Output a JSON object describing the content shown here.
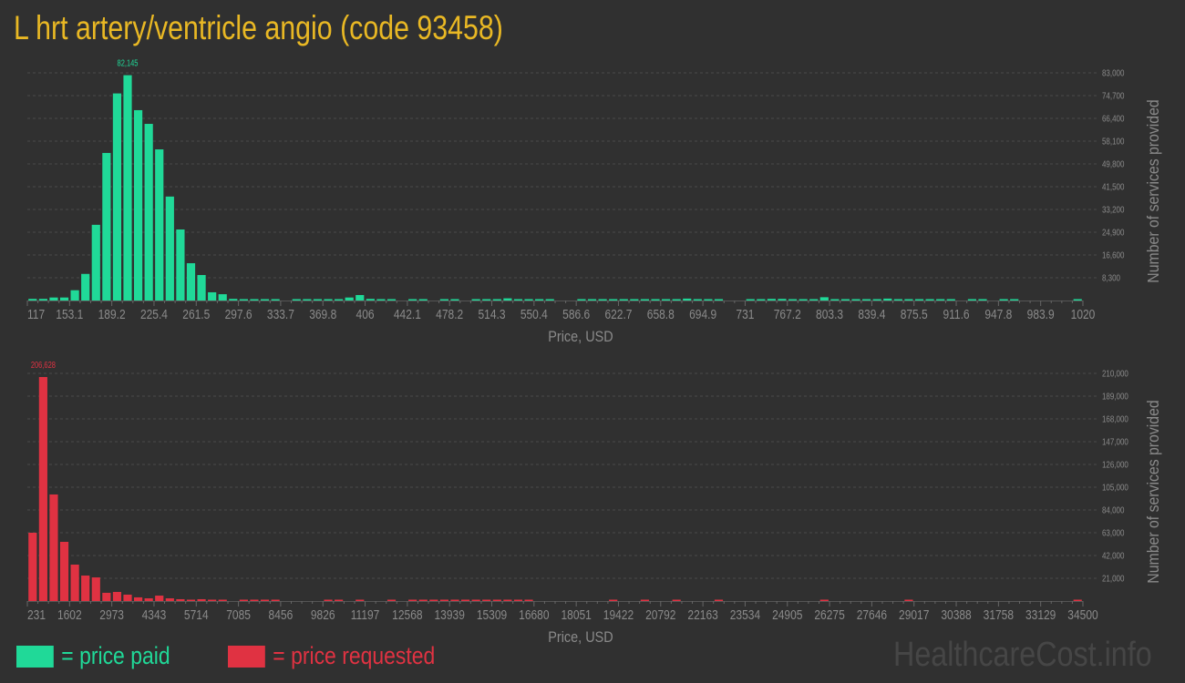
{
  "title": "L hrt artery/ventricle angio (code 93458)",
  "colors": {
    "background": "#303030",
    "title": "#e9b824",
    "paid": "#20d998",
    "requested": "#e03242",
    "axis_text": "#8a8a8a"
  },
  "legend": {
    "paid_label": "= price paid",
    "requested_label": "= price requested"
  },
  "watermark": "HealthcareCost.info",
  "chart_data": [
    {
      "type": "bar",
      "series_key": "paid",
      "xlabel": "Price, USD",
      "ylabel": "Number of services provided",
      "xlim": [
        117,
        1020
      ],
      "ylim": [
        0,
        83000
      ],
      "grid": true,
      "max_label": "82,145",
      "x_tick_labels": [
        "117",
        "153.1",
        "189.2",
        "225.4",
        "261.5",
        "297.6",
        "333.7",
        "369.8",
        "406",
        "442.1",
        "478.2",
        "514.3",
        "550.4",
        "586.6",
        "622.7",
        "658.8",
        "694.9",
        "731",
        "767.2",
        "803.3",
        "839.4",
        "875.5",
        "911.6",
        "947.8",
        "983.9",
        "1020"
      ],
      "y_ticks": [
        8300,
        16600,
        24900,
        33200,
        41500,
        49800,
        58100,
        66400,
        74700,
        83000
      ],
      "y_tick_labels": [
        "8,300",
        "16,600",
        "24,900",
        "33,200",
        "41,500",
        "49,800",
        "58,100",
        "66,400",
        "74,700",
        "83,000"
      ],
      "values": [
        600,
        600,
        1100,
        1100,
        3750,
        9700,
        27600,
        53800,
        75500,
        82145,
        69400,
        64400,
        55100,
        37900,
        25900,
        13600,
        9300,
        3000,
        2300,
        600,
        300,
        300,
        300,
        300,
        0,
        300,
        300,
        300,
        500,
        500,
        1100,
        2000,
        600,
        300,
        300,
        0,
        300,
        300,
        0,
        300,
        300,
        0,
        300,
        300,
        300,
        800,
        300,
        300,
        300,
        300,
        0,
        0,
        300,
        300,
        300,
        300,
        300,
        300,
        300,
        300,
        300,
        300,
        700,
        300,
        300,
        300,
        0,
        0,
        300,
        300,
        600,
        600,
        300,
        300,
        300,
        1200,
        300,
        300,
        300,
        300,
        300,
        700,
        300,
        300,
        300,
        300,
        300,
        300,
        0,
        300,
        300,
        0,
        300,
        300,
        0,
        0,
        0,
        0,
        0,
        300
      ]
    },
    {
      "type": "bar",
      "series_key": "requested",
      "xlabel": "Price, USD",
      "ylabel": "Number of services provided",
      "xlim": [
        231,
        34500
      ],
      "ylim": [
        0,
        210000
      ],
      "grid": true,
      "max_label": "206,628",
      "x_tick_labels": [
        "231",
        "1602",
        "2973",
        "4343",
        "5714",
        "7085",
        "8456",
        "9826",
        "11197",
        "12568",
        "13939",
        "15309",
        "16680",
        "18051",
        "19422",
        "20792",
        "22163",
        "23534",
        "24905",
        "26275",
        "27646",
        "29017",
        "30388",
        "31758",
        "33129",
        "34500"
      ],
      "y_ticks": [
        21000,
        42000,
        63000,
        84000,
        105000,
        126000,
        147000,
        168000,
        189000,
        210000
      ],
      "y_tick_labels": [
        "21,000",
        "42,000",
        "63,000",
        "84,000",
        "105,000",
        "126,000",
        "147,000",
        "168,000",
        "189,000",
        "210,000"
      ],
      "values": [
        63000,
        206628,
        98300,
        54600,
        33600,
        23500,
        21800,
        7600,
        8400,
        5900,
        3400,
        2500,
        5000,
        2500,
        1700,
        900,
        1700,
        400,
        400,
        0,
        900,
        400,
        400,
        400,
        0,
        0,
        0,
        0,
        400,
        400,
        0,
        400,
        0,
        0,
        400,
        0,
        400,
        400,
        1200,
        400,
        400,
        400,
        400,
        400,
        400,
        400,
        400,
        400,
        0,
        0,
        0,
        0,
        0,
        0,
        0,
        400,
        0,
        0,
        400,
        0,
        0,
        400,
        0,
        0,
        0,
        400,
        0,
        0,
        0,
        0,
        0,
        0,
        0,
        0,
        0,
        400,
        0,
        0,
        0,
        0,
        0,
        0,
        0,
        400,
        0,
        0,
        0,
        0,
        0,
        0,
        0,
        0,
        0,
        0,
        0,
        0,
        0,
        0,
        0,
        400
      ]
    }
  ]
}
